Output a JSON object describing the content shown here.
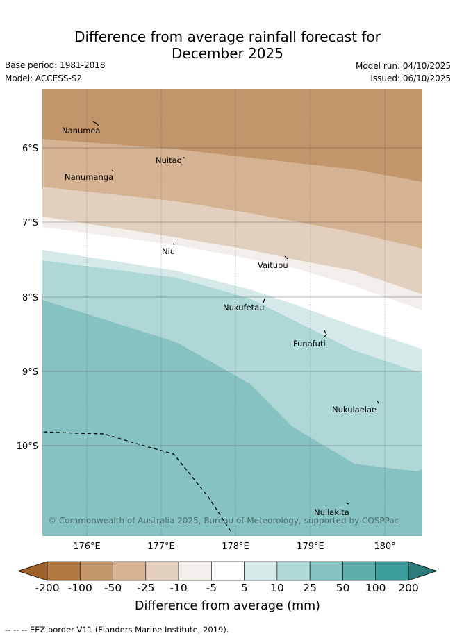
{
  "title_line1": "Difference from average rainfall forecast for",
  "title_line2": "December 2025",
  "base_period": "Base period: 1981-2018",
  "model": "Model: ACCESS-S2",
  "model_run": "Model run: 04/10/2025",
  "issued": "Issued: 06/10/2025",
  "map": {
    "lat_ticks": [
      "6°S",
      "7°S",
      "8°S",
      "9°S",
      "10°S"
    ],
    "lon_ticks": [
      "176°E",
      "177°E",
      "178°E",
      "179°E",
      "180°"
    ],
    "places": [
      "Nanumea",
      "Nuitao",
      "Nanumanga",
      "Niu",
      "Vaitupu",
      "Nukufetau",
      "Funafuti",
      "Nukulaelae",
      "Nuilakita"
    ],
    "copyright": "© Commonwealth of Australia 2025, Bureau of Meteorology, supported by COSPPac"
  },
  "colorbar": {
    "title": "Difference from average (mm)",
    "labels": [
      "-200",
      "-100",
      "-50",
      "-25",
      "-10",
      "-5",
      "5",
      "10",
      "25",
      "50",
      "100",
      "200"
    ],
    "colors": [
      "#a0622a",
      "#b07840",
      "#c2956b",
      "#d4b292",
      "#e3cfbd",
      "#f2eee9",
      "#ffffff",
      "#d5e9e8",
      "#aed7d6",
      "#85c2c1",
      "#5eaeae",
      "#3a9d9c",
      "#2c7a7a"
    ]
  },
  "footnote": "--  --  -- EEZ border V11 (Flanders Marine Institute, 2019)."
}
